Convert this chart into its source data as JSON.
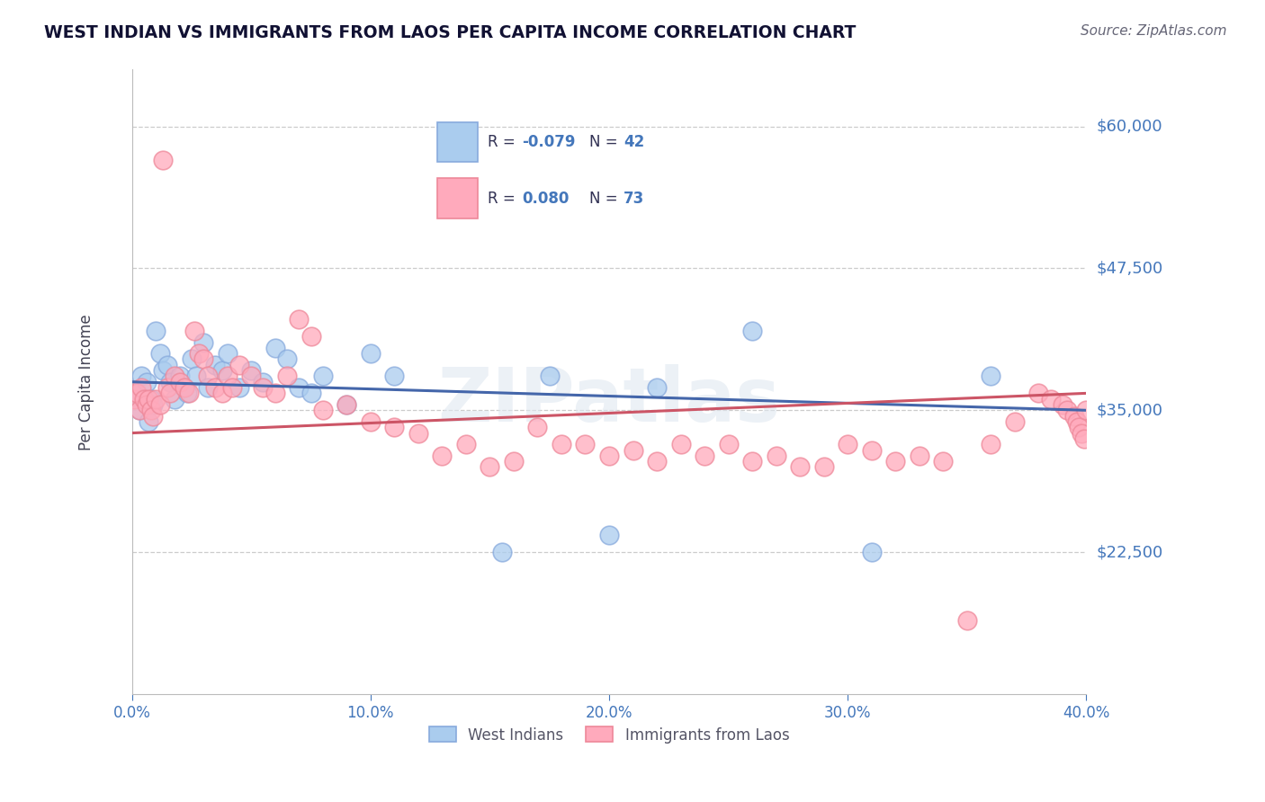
{
  "title": "WEST INDIAN VS IMMIGRANTS FROM LAOS PER CAPITA INCOME CORRELATION CHART",
  "source": "Source: ZipAtlas.com",
  "ylabel": "Per Capita Income",
  "xlim": [
    0.0,
    0.4
  ],
  "ylim": [
    10000,
    65000
  ],
  "yticks": [
    22500,
    35000,
    47500,
    60000
  ],
  "ytick_labels": [
    "$22,500",
    "$35,000",
    "$47,500",
    "$60,000"
  ],
  "xticks": [
    0.0,
    0.1,
    0.2,
    0.3,
    0.4
  ],
  "xtick_labels": [
    "0.0%",
    "10.0%",
    "20.0%",
    "30.0%",
    "40.0%"
  ],
  "background_color": "#ffffff",
  "grid_color": "#cccccc",
  "blue_face_color": "#aaccee",
  "blue_edge_color": "#88aadd",
  "pink_face_color": "#ffaabc",
  "pink_edge_color": "#ee8899",
  "blue_line_color": "#4466aa",
  "pink_line_color": "#cc5566",
  "axis_color": "#4477bb",
  "text_color": "#333355",
  "legend_R1": "-0.079",
  "legend_N1": "42",
  "legend_R2": "0.080",
  "legend_N2": "73",
  "label1": "West Indians",
  "label2": "Immigrants from Laos",
  "watermark": "ZIPatlas",
  "blue_x": [
    0.002,
    0.003,
    0.004,
    0.005,
    0.006,
    0.007,
    0.008,
    0.009,
    0.01,
    0.012,
    0.013,
    0.015,
    0.016,
    0.018,
    0.02,
    0.022,
    0.023,
    0.025,
    0.027,
    0.03,
    0.032,
    0.035,
    0.038,
    0.04,
    0.045,
    0.05,
    0.055,
    0.06,
    0.065,
    0.07,
    0.075,
    0.08,
    0.09,
    0.1,
    0.11,
    0.155,
    0.175,
    0.2,
    0.22,
    0.26,
    0.31,
    0.36
  ],
  "blue_y": [
    36500,
    35000,
    38000,
    36000,
    37500,
    34000,
    36000,
    35500,
    42000,
    40000,
    38500,
    39000,
    37500,
    36000,
    38000,
    37000,
    36500,
    39500,
    38000,
    41000,
    37000,
    39000,
    38500,
    40000,
    37000,
    38500,
    37500,
    40500,
    39500,
    37000,
    36500,
    38000,
    35500,
    40000,
    38000,
    22500,
    38000,
    24000,
    37000,
    42000,
    22500,
    38000
  ],
  "pink_x": [
    0.001,
    0.002,
    0.003,
    0.004,
    0.005,
    0.006,
    0.007,
    0.008,
    0.009,
    0.01,
    0.012,
    0.013,
    0.015,
    0.016,
    0.018,
    0.02,
    0.022,
    0.024,
    0.026,
    0.028,
    0.03,
    0.032,
    0.035,
    0.038,
    0.04,
    0.042,
    0.045,
    0.05,
    0.055,
    0.06,
    0.065,
    0.07,
    0.075,
    0.08,
    0.09,
    0.1,
    0.11,
    0.12,
    0.13,
    0.14,
    0.15,
    0.16,
    0.17,
    0.18,
    0.19,
    0.2,
    0.21,
    0.22,
    0.23,
    0.24,
    0.25,
    0.26,
    0.27,
    0.28,
    0.29,
    0.3,
    0.31,
    0.32,
    0.33,
    0.34,
    0.35,
    0.36,
    0.37,
    0.38,
    0.385,
    0.39,
    0.392,
    0.395,
    0.396,
    0.397,
    0.398,
    0.399,
    0.4
  ],
  "pink_y": [
    36000,
    36500,
    35000,
    37000,
    36000,
    35500,
    36000,
    35000,
    34500,
    36000,
    35500,
    57000,
    37000,
    36500,
    38000,
    37500,
    37000,
    36500,
    42000,
    40000,
    39500,
    38000,
    37000,
    36500,
    38000,
    37000,
    39000,
    38000,
    37000,
    36500,
    38000,
    43000,
    41500,
    35000,
    35500,
    34000,
    33500,
    33000,
    31000,
    32000,
    30000,
    30500,
    33500,
    32000,
    32000,
    31000,
    31500,
    30500,
    32000,
    31000,
    32000,
    30500,
    31000,
    30000,
    30000,
    32000,
    31500,
    30500,
    31000,
    30500,
    16500,
    32000,
    34000,
    36500,
    36000,
    35500,
    35000,
    34500,
    34000,
    33500,
    33000,
    32500,
    35000
  ]
}
